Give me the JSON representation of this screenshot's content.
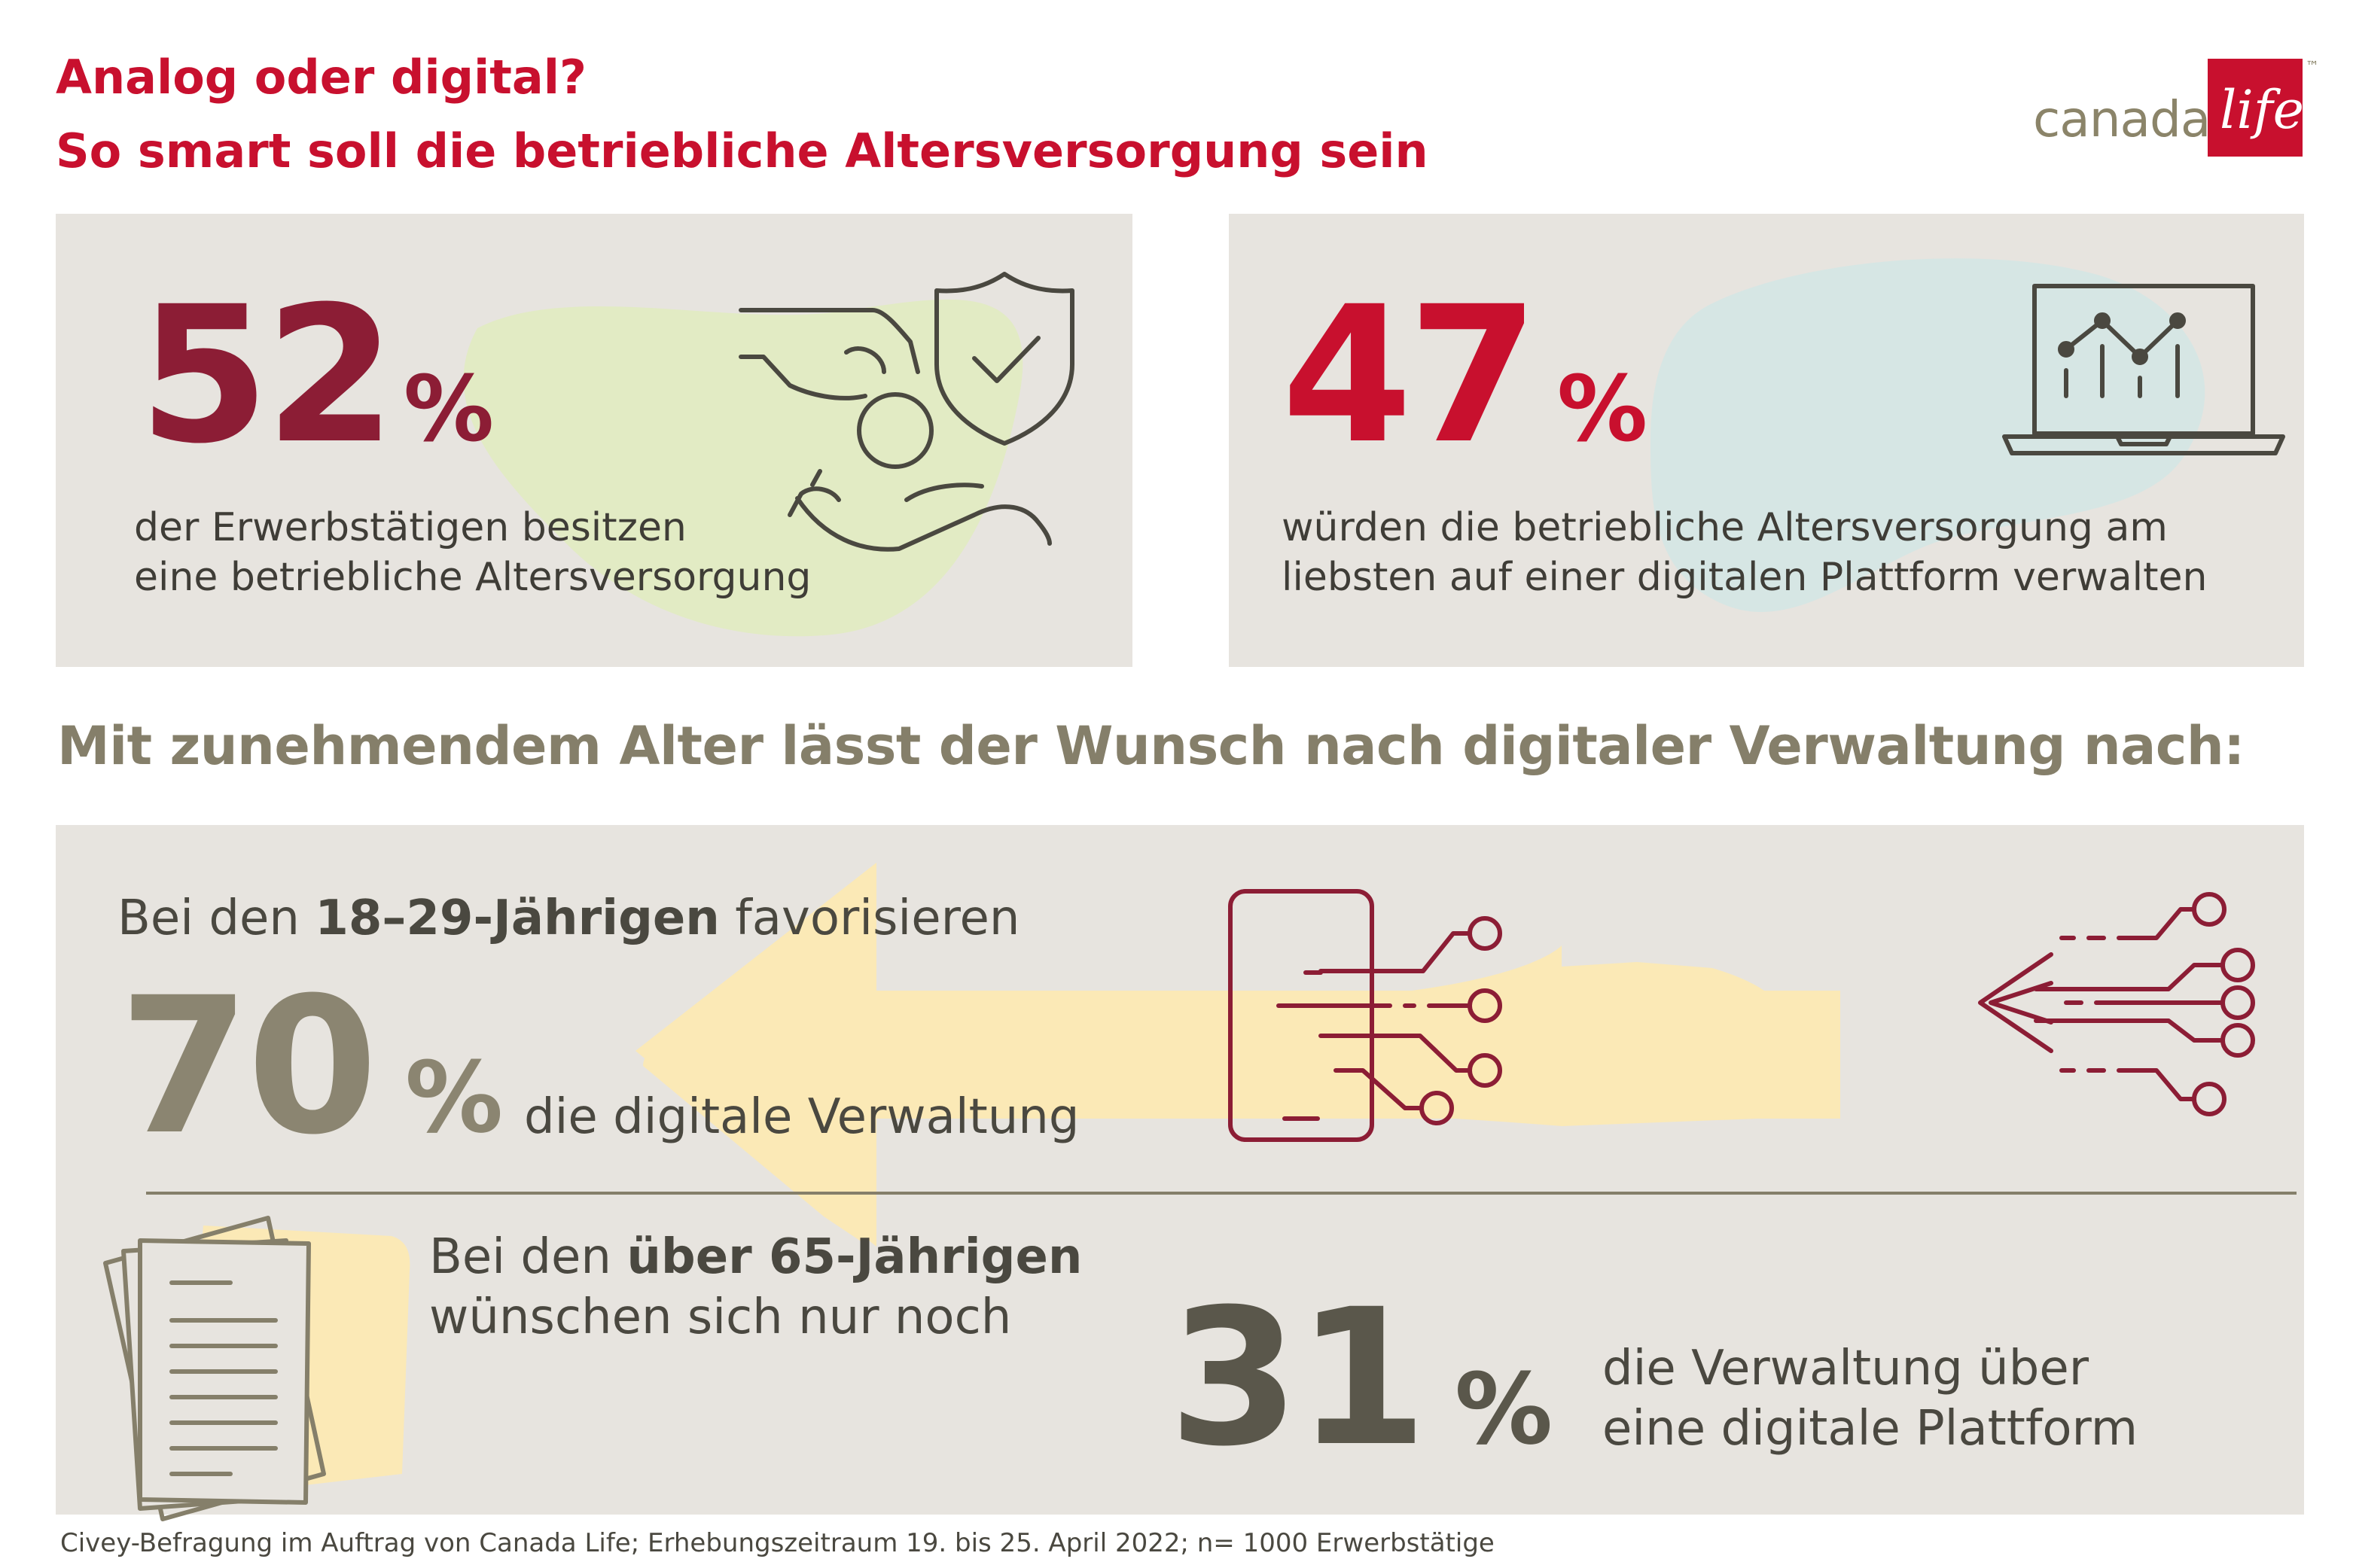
{
  "title": {
    "line1": "Analog oder digital?",
    "line2": "So smart soll die betriebliche Altersversorgung sein"
  },
  "logo": {
    "word": "canada",
    "script": "life",
    "tm": "™"
  },
  "stat1": {
    "value": "52",
    "unit": "%",
    "text_line1": "der Erwerbstätigen besitzen",
    "text_line2": "eine betriebliche Altersversorgung",
    "icon": "hand-coin-shield-icon"
  },
  "stat2": {
    "value": "47",
    "unit": "%",
    "text_line1": "würden die betriebliche Altersversorgung am",
    "text_line2": "liebsten auf einer digitalen Plattform verwalten",
    "icon": "laptop-chart-icon"
  },
  "subheading": "Mit zunehmendem Alter lässt der Wunsch nach digitaler Verwaltung nach:",
  "young": {
    "prefix": "Bei den ",
    "group": "18–29-Jährigen",
    "suffix": " favorisieren",
    "value": "70",
    "unit": "%",
    "text": "die digitale Verwaltung",
    "icon": "smartphone-circuit-icon"
  },
  "old": {
    "prefix": "Bei den ",
    "group": "über 65-Jährigen",
    "line2": "wünschen sich nur noch",
    "value": "31",
    "unit": "%",
    "text_line1": "die Verwaltung über",
    "text_line2": "eine digitale Plattform",
    "icon": "paper-documents-icon"
  },
  "footnote": "Civey-Befragung im Auftrag von Canada Life; Erhebungszeitraum 19. bis 25. April 2022; n= 1000 Erwerbstätige",
  "colors": {
    "red": "#c8102e",
    "dark_red": "#8c1d35",
    "olive": "#857f6a",
    "dark_olive": "#5a574b",
    "panel": "#e7e4df"
  }
}
